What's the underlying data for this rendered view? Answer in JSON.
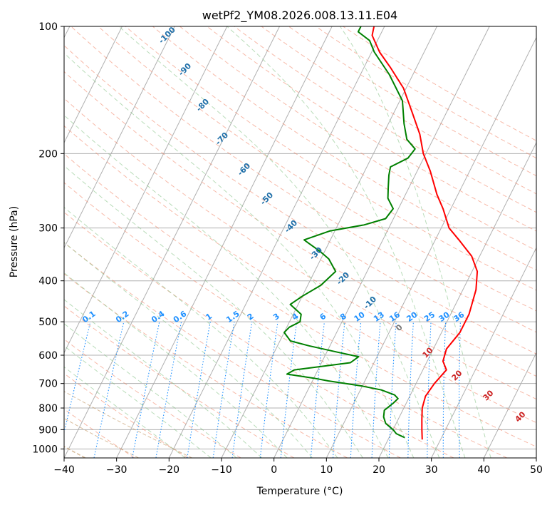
{
  "chart_data": {
    "type": "line",
    "title": "wetPf2_YM08.2026.008.13.11.E04",
    "xlabel": "Temperature (°C)",
    "ylabel": "Pressure (hPa)",
    "xlim": [
      -40,
      50
    ],
    "ylim": [
      1050,
      100
    ],
    "y_scale": "log",
    "x_ticks": [
      -40,
      -30,
      -20,
      -10,
      0,
      10,
      20,
      30,
      40,
      50
    ],
    "y_ticks": [
      100,
      200,
      300,
      400,
      500,
      600,
      700,
      800,
      900,
      1000
    ],
    "grid": true,
    "series": [
      {
        "type": "temperature",
        "color": "#ff0000",
        "points": [
          [
            26.5,
            950
          ],
          [
            25.5,
            900
          ],
          [
            24.5,
            850
          ],
          [
            23.5,
            800
          ],
          [
            23.0,
            750
          ],
          [
            23.5,
            700
          ],
          [
            24.5,
            650
          ],
          [
            23.0,
            620
          ],
          [
            22.5,
            580
          ],
          [
            23.5,
            530
          ],
          [
            23.5,
            480
          ],
          [
            22.5,
            420
          ],
          [
            21.0,
            380
          ],
          [
            18.5,
            350
          ],
          [
            14.5,
            320
          ],
          [
            11.5,
            300
          ],
          [
            8.5,
            270
          ],
          [
            6.0,
            250
          ],
          [
            2.5,
            220
          ],
          [
            -0.5,
            200
          ],
          [
            -3.0,
            180
          ],
          [
            -6.5,
            160
          ],
          [
            -10.5,
            140
          ],
          [
            -15.0,
            125
          ],
          [
            -18.5,
            115
          ],
          [
            -21.5,
            105
          ],
          [
            -22.0,
            100
          ]
        ]
      },
      {
        "type": "dewpoint",
        "color": "#008000",
        "points": [
          [
            23.0,
            940
          ],
          [
            22.5,
            935
          ],
          [
            21.0,
            920
          ],
          [
            20.0,
            900
          ],
          [
            18.0,
            870
          ],
          [
            17.0,
            840
          ],
          [
            16.5,
            810
          ],
          [
            17.5,
            780
          ],
          [
            18.0,
            760
          ],
          [
            17.0,
            745
          ],
          [
            14.0,
            725
          ],
          [
            10.0,
            710
          ],
          [
            3.0,
            690
          ],
          [
            0.0,
            680
          ],
          [
            -5.5,
            665
          ],
          [
            -4.5,
            650
          ],
          [
            5.5,
            625
          ],
          [
            6.5,
            605
          ],
          [
            2.0,
            590
          ],
          [
            -4.0,
            570
          ],
          [
            -8.0,
            555
          ],
          [
            -10.0,
            530
          ],
          [
            -9.5,
            515
          ],
          [
            -8.0,
            500
          ],
          [
            -8.5,
            480
          ],
          [
            -11.5,
            455
          ],
          [
            -10.0,
            435
          ],
          [
            -7.5,
            410
          ],
          [
            -6.0,
            380
          ],
          [
            -8.5,
            355
          ],
          [
            -11.0,
            340
          ],
          [
            -14.0,
            325
          ],
          [
            -15.0,
            320
          ],
          [
            -11.0,
            305
          ],
          [
            -5.0,
            295
          ],
          [
            -1.5,
            285
          ],
          [
            -1.0,
            270
          ],
          [
            -3.0,
            255
          ],
          [
            -4.0,
            240
          ],
          [
            -5.0,
            225
          ],
          [
            -5.5,
            215
          ],
          [
            -3.0,
            205
          ],
          [
            -2.5,
            195
          ],
          [
            -5.0,
            185
          ],
          [
            -7.0,
            170
          ],
          [
            -9.5,
            150
          ],
          [
            -14.5,
            130
          ],
          [
            -19.5,
            115
          ],
          [
            -21.5,
            108
          ],
          [
            -24.5,
            103
          ],
          [
            -24.5,
            100
          ]
        ]
      }
    ],
    "dry_adiabat_labels": [
      "-100",
      "-90",
      "-80",
      "-70",
      "-60",
      "-50",
      "-40",
      "-30",
      "-20",
      "-10",
      "0",
      "10",
      "20",
      "30",
      "40"
    ],
    "mixing_ratio_labels": [
      "0.1",
      "0.2",
      "0.4",
      "0.6",
      "1",
      "1.5",
      "2",
      "3",
      "4",
      "6",
      "8",
      "10",
      "13",
      "16",
      "20",
      "25",
      "30",
      "36"
    ],
    "colors": {
      "isotherm_grid": "#b0b0b0",
      "dry_adiabat": "#f08060",
      "moist_adiabat": "#7fbf7f",
      "mixing_ratio": "#1e90ff",
      "lcl_curve": "#c8a070",
      "label_blue": "#1e6ea8",
      "label_red": "#cc2222"
    }
  }
}
